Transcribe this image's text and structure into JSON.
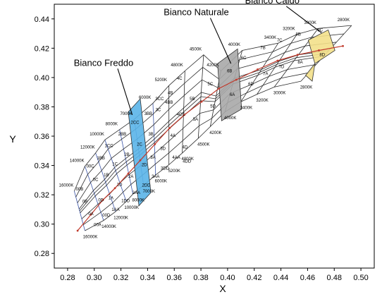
{
  "chart_data": {
    "type": "scatter",
    "title": "",
    "xlabel": "X",
    "ylabel": "Y",
    "xlim": [
      0.27,
      0.51
    ],
    "ylim": [
      0.27,
      0.45
    ],
    "x_ticks": [
      "0.28",
      "0.30",
      "0.32",
      "0.34",
      "0.36",
      "0.38",
      "0.40",
      "0.42",
      "0.44",
      "0.46",
      "0.48",
      "0.50"
    ],
    "y_ticks": [
      "0.28",
      "0.30",
      "0.32",
      "0.34",
      "0.36",
      "0.38",
      "0.40",
      "0.42",
      "0.44"
    ],
    "grid": false,
    "colors": {
      "grid_lines": "#2b2b2b",
      "cool_grid": "#3a54a8",
      "locus": "#c0392b",
      "highlight_cold": "#5ab4e8",
      "highlight_neutral": "#a8a8a8",
      "highlight_warm": "#f3e08a"
    },
    "isotherm_labels": {
      "upper": [
        {
          "x": 0.279,
          "y": 0.3265,
          "text": "16000K"
        },
        {
          "x": 0.287,
          "y": 0.3435,
          "text": "14000K"
        },
        {
          "x": 0.295,
          "y": 0.3525,
          "text": "12000K"
        },
        {
          "x": 0.302,
          "y": 0.3615,
          "text": "10000K"
        },
        {
          "x": 0.313,
          "y": 0.3685,
          "text": "8000K"
        },
        {
          "x": 0.324,
          "y": 0.3755,
          "text": "7000K"
        },
        {
          "x": 0.338,
          "y": 0.3865,
          "text": "6000K"
        },
        {
          "x": 0.35,
          "y": 0.3985,
          "text": "5200K"
        },
        {
          "x": 0.362,
          "y": 0.4085,
          "text": "4800K"
        },
        {
          "x": 0.376,
          "y": 0.4195,
          "text": "4500K"
        },
        {
          "x": 0.389,
          "y": 0.4085,
          "text": "4200K"
        },
        {
          "x": 0.405,
          "y": 0.4225,
          "text": "4000K"
        },
        {
          "x": 0.432,
          "y": 0.4275,
          "text": "3400K"
        },
        {
          "x": 0.446,
          "y": 0.4335,
          "text": "3200K"
        },
        {
          "x": 0.462,
          "y": 0.4375,
          "text": "3000K"
        },
        {
          "x": 0.487,
          "y": 0.4395,
          "text": "2800K"
        }
      ],
      "lower": [
        {
          "x": 0.297,
          "y": 0.2915,
          "text": "16000K"
        },
        {
          "x": 0.311,
          "y": 0.2985,
          "text": "14000K"
        },
        {
          "x": 0.32,
          "y": 0.3045,
          "text": "12000K"
        },
        {
          "x": 0.328,
          "y": 0.3115,
          "text": "10000K"
        },
        {
          "x": 0.333,
          "y": 0.3165,
          "text": "8000K"
        },
        {
          "x": 0.341,
          "y": 0.3225,
          "text": "7000K"
        },
        {
          "x": 0.35,
          "y": 0.3295,
          "text": "6000K"
        },
        {
          "x": 0.36,
          "y": 0.3365,
          "text": "5200K"
        },
        {
          "x": 0.37,
          "y": 0.3445,
          "text": "4800K"
        },
        {
          "x": 0.382,
          "y": 0.3545,
          "text": "4500K"
        },
        {
          "x": 0.391,
          "y": 0.3625,
          "text": "4200K"
        },
        {
          "x": 0.402,
          "y": 0.3725,
          "text": "4000K"
        },
        {
          "x": 0.414,
          "y": 0.3795,
          "text": "3400K"
        },
        {
          "x": 0.426,
          "y": 0.3845,
          "text": "3200K"
        },
        {
          "x": 0.439,
          "y": 0.3895,
          "text": "3000K"
        },
        {
          "x": 0.459,
          "y": 0.3935,
          "text": "2800K"
        }
      ]
    },
    "bins": [
      {
        "label": "00B",
        "x": 0.289,
        "y": 0.324
      },
      {
        "label": "0B",
        "x": 0.293,
        "y": 0.3155
      },
      {
        "label": "0A",
        "x": 0.2975,
        "y": 0.307
      },
      {
        "label": "00A",
        "x": 0.3025,
        "y": 0.2995
      },
      {
        "label": "00C",
        "x": 0.297,
        "y": 0.3395
      },
      {
        "label": "0C",
        "x": 0.301,
        "y": 0.3305
      },
      {
        "label": "0D",
        "x": 0.305,
        "y": 0.3165
      },
      {
        "label": "00D",
        "x": 0.309,
        "y": 0.306
      },
      {
        "label": "1BB",
        "x": 0.305,
        "y": 0.345
      },
      {
        "label": "1B",
        "x": 0.309,
        "y": 0.3335
      },
      {
        "label": "1A",
        "x": 0.3125,
        "y": 0.318
      },
      {
        "label": "1AA",
        "x": 0.316,
        "y": 0.31
      },
      {
        "label": "1CC",
        "x": 0.311,
        "y": 0.3535
      },
      {
        "label": "1C",
        "x": 0.3155,
        "y": 0.341
      },
      {
        "label": "1D",
        "x": 0.319,
        "y": 0.327
      },
      {
        "label": "1DD",
        "x": 0.3235,
        "y": 0.316
      },
      {
        "label": "2BB",
        "x": 0.321,
        "y": 0.3615
      },
      {
        "label": "2B",
        "x": 0.3245,
        "y": 0.3475
      },
      {
        "label": "2A",
        "x": 0.3275,
        "y": 0.3325
      },
      {
        "label": "2AA",
        "x": 0.3315,
        "y": 0.3215
      },
      {
        "label": "2CC",
        "x": 0.3305,
        "y": 0.3695
      },
      {
        "label": "2C",
        "x": 0.334,
        "y": 0.3545
      },
      {
        "label": "2D",
        "x": 0.3375,
        "y": 0.3405
      },
      {
        "label": "2DD",
        "x": 0.339,
        "y": 0.3265
      },
      {
        "label": "3BB",
        "x": 0.3405,
        "y": 0.3755
      },
      {
        "label": "3B",
        "x": 0.3425,
        "y": 0.3615
      },
      {
        "label": "3A",
        "x": 0.344,
        "y": 0.3455
      },
      {
        "label": "3AA",
        "x": 0.346,
        "y": 0.3325
      },
      {
        "label": "3C",
        "x": 0.348,
        "y": 0.378
      },
      {
        "label": "3CC",
        "x": 0.349,
        "y": 0.3855
      },
      {
        "label": "3D",
        "x": 0.3515,
        "y": 0.3515
      },
      {
        "label": "3DD",
        "x": 0.353,
        "y": 0.338
      },
      {
        "label": "4B",
        "x": 0.357,
        "y": 0.3895
      },
      {
        "label": "4BB",
        "x": 0.356,
        "y": 0.383
      },
      {
        "label": "4A",
        "x": 0.359,
        "y": 0.3605
      },
      {
        "label": "4AA",
        "x": 0.3615,
        "y": 0.3455
      },
      {
        "label": "4C",
        "x": 0.364,
        "y": 0.3995
      },
      {
        "label": "4CC",
        "x": 0.365,
        "y": 0.375
      },
      {
        "label": "4D",
        "x": 0.368,
        "y": 0.3525
      },
      {
        "label": "4DD",
        "x": 0.3695,
        "y": 0.343
      },
      {
        "label": "5B",
        "x": 0.3735,
        "y": 0.3855
      },
      {
        "label": "5A",
        "x": 0.376,
        "y": 0.3715
      },
      {
        "label": "5C",
        "x": 0.387,
        "y": 0.3955
      },
      {
        "label": "5D",
        "x": 0.389,
        "y": 0.3805
      },
      {
        "label": "6B",
        "x": 0.4015,
        "y": 0.4045
      },
      {
        "label": "6A",
        "x": 0.4035,
        "y": 0.3885
      },
      {
        "label": "6C",
        "x": 0.412,
        "y": 0.4135
      },
      {
        "label": "6D",
        "x": 0.4175,
        "y": 0.3955
      },
      {
        "label": "7B",
        "x": 0.4265,
        "y": 0.4205
      },
      {
        "label": "7A",
        "x": 0.4285,
        "y": 0.4025
      },
      {
        "label": "7C",
        "x": 0.439,
        "y": 0.4255
      },
      {
        "label": "7D",
        "x": 0.4405,
        "y": 0.4075
      },
      {
        "label": "8B",
        "x": 0.453,
        "y": 0.4295
      },
      {
        "label": "8A",
        "x": 0.4545,
        "y": 0.4105
      },
      {
        "label": "8C",
        "x": 0.4695,
        "y": 0.4325
      },
      {
        "label": "8D",
        "x": 0.471,
        "y": 0.4155
      }
    ],
    "highlighted_regions": [
      {
        "name": "Bianco Freddo",
        "fill": "#5ab4e8",
        "polygon": [
          [
            0.3255,
            0.3765
          ],
          [
            0.3345,
            0.3855
          ],
          [
            0.3425,
            0.3215
          ],
          [
            0.3335,
            0.3125
          ]
        ],
        "label_xy": [
          0.307,
          0.408
        ],
        "arrow_to": [
          0.3285,
          0.3745
        ]
      },
      {
        "name": "Bianco Naturale",
        "fill": "#a8a8a8",
        "polygon": [
          [
            0.3925,
            0.4095
          ],
          [
            0.4075,
            0.4195
          ],
          [
            0.4105,
            0.3785
          ],
          [
            0.3955,
            0.3705
          ]
        ],
        "label_xy": [
          0.3765,
          0.4425
        ],
        "arrow_to": [
          0.4025,
          0.4095
        ]
      },
      {
        "name": "Bianco Caldo",
        "fill": "#f3e08a",
        "polygon": [
          [
            0.4605,
            0.4255
          ],
          [
            0.4755,
            0.4325
          ],
          [
            0.4805,
            0.4185
          ],
          [
            0.4655,
            0.4095
          ],
          [
            0.4585,
            0.4015
          ],
          [
            0.4635,
            0.3975
          ],
          [
            0.4655,
            0.4095
          ]
        ],
        "label_xy": [
          0.4335,
          0.4505
        ],
        "arrow_to": [
          0.4705,
          0.4305
        ]
      }
    ],
    "locus": [
      [
        0.2875,
        0.2955
      ],
      [
        0.2975,
        0.3065
      ],
      [
        0.3065,
        0.3165
      ],
      [
        0.3155,
        0.3245
      ],
      [
        0.3255,
        0.3345
      ],
      [
        0.3345,
        0.3435
      ],
      [
        0.3455,
        0.3545
      ],
      [
        0.3565,
        0.3655
      ],
      [
        0.3675,
        0.3745
      ],
      [
        0.3805,
        0.3835
      ],
      [
        0.3935,
        0.3925
      ],
      [
        0.4065,
        0.3985
      ],
      [
        0.4225,
        0.4055
      ],
      [
        0.4375,
        0.4115
      ],
      [
        0.4525,
        0.4155
      ],
      [
        0.4685,
        0.4185
      ],
      [
        0.4865,
        0.4215
      ]
    ]
  },
  "labels": {
    "bianco_freddo": "Bianco Freddo",
    "bianco_naturale": "Bianco Naturale",
    "bianco_caldo": "Bianco Caldo"
  }
}
